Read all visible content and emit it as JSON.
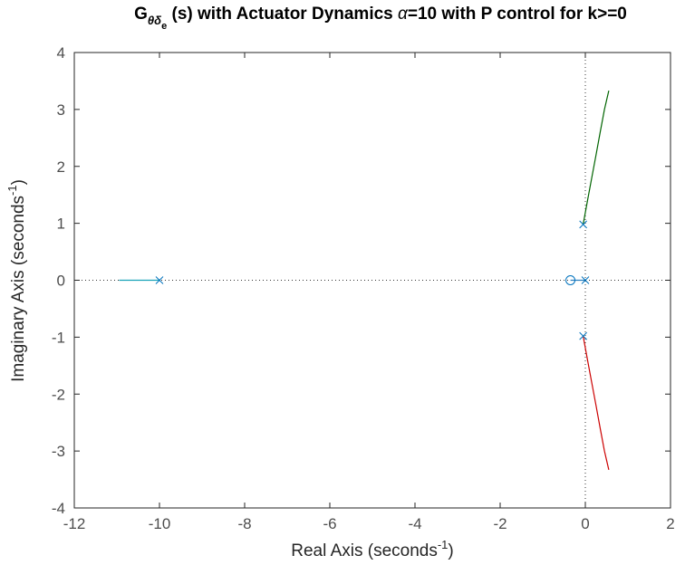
{
  "chart_data": {
    "type": "root-locus",
    "title": {
      "prefix": "G",
      "subscript": "θδ",
      "subsubscript": "e",
      "rest": " (s) with Actuator Dynamics ",
      "alpha": "α",
      "suffix": "=10 with P control for k>=0"
    },
    "xlabel": {
      "text": "Real Axis (seconds",
      "sup": "-1",
      "close": ")"
    },
    "ylabel": {
      "text": "Imaginary Axis (seconds",
      "sup": "-1",
      "close": ")"
    },
    "xlim": [
      -12,
      2
    ],
    "ylim": [
      -4,
      4
    ],
    "xticks": [
      -12,
      -10,
      -8,
      -6,
      -4,
      -2,
      0,
      2
    ],
    "yticks": [
      -4,
      -3,
      -2,
      -1,
      0,
      1,
      2,
      3,
      4
    ],
    "grid": false,
    "reference_lines": {
      "real_axis_zero_line": true,
      "imag_axis_zero_line": true
    },
    "colors": {
      "pole_zero_marker": "#0072BD",
      "branch_real_far": "#17a2b8",
      "branch_real_near": "#2a7fbf",
      "branch_upper": "#006400",
      "branch_lower": "#cc0000",
      "axes": "#262626",
      "reference": "#333333"
    },
    "poles": [
      {
        "re": -10,
        "im": 0
      },
      {
        "re": 0,
        "im": 0
      },
      {
        "re": -0.05,
        "im": 0.98
      },
      {
        "re": -0.05,
        "im": -0.98
      }
    ],
    "zeros": [
      {
        "re": -0.35,
        "im": 0
      }
    ],
    "series": [
      {
        "color_key": "branch_real_far",
        "x": [
          -10,
          -10.3,
          -10.6,
          -10.95
        ],
        "y": [
          0,
          0,
          0,
          0
        ]
      },
      {
        "color_key": "branch_real_near",
        "x": [
          0,
          -0.1,
          -0.2,
          -0.3,
          -0.35
        ],
        "y": [
          0,
          0,
          0,
          0,
          0
        ]
      },
      {
        "color_key": "branch_upper",
        "x": [
          -0.05,
          0.05,
          0.15,
          0.25,
          0.35,
          0.45,
          0.55
        ],
        "y": [
          0.98,
          1.4,
          1.8,
          2.2,
          2.6,
          3.0,
          3.33
        ]
      },
      {
        "color_key": "branch_lower",
        "x": [
          -0.05,
          0.05,
          0.15,
          0.25,
          0.35,
          0.45,
          0.55
        ],
        "y": [
          -0.98,
          -1.4,
          -1.8,
          -2.2,
          -2.6,
          -3.0,
          -3.33
        ]
      }
    ]
  }
}
